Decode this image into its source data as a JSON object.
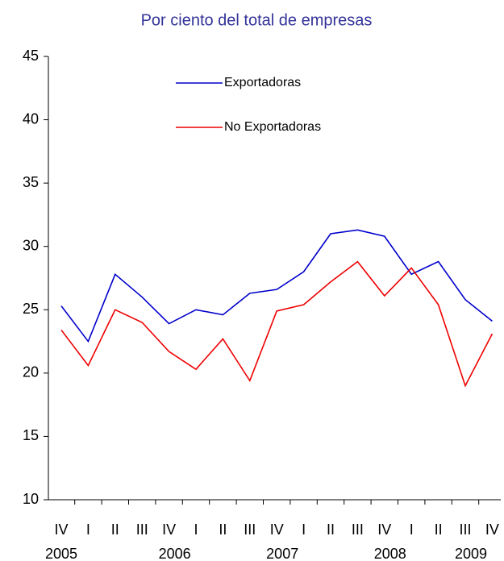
{
  "chart_data": {
    "type": "line",
    "title": "Por ciento del total de empresas",
    "categories": [
      "IV",
      "I",
      "II",
      "III",
      "IV",
      "I",
      "II",
      "III",
      "IV",
      "I",
      "II",
      "III",
      "IV",
      "I",
      "II",
      "III",
      "IV"
    ],
    "year_labels": [
      "2005",
      null,
      null,
      null,
      "2006",
      null,
      null,
      null,
      "2007",
      null,
      null,
      null,
      "2008",
      null,
      null,
      "2009",
      null
    ],
    "series": [
      {
        "name": "Exportadoras",
        "color": "#0000cc",
        "values": [
          25.3,
          22.5,
          27.8,
          26.0,
          23.9,
          25.0,
          24.6,
          26.3,
          26.6,
          28.0,
          31.0,
          31.3,
          30.8,
          27.8,
          28.8,
          25.8,
          24.1
        ]
      },
      {
        "name": "No Exportadoras",
        "color": "#ee0000",
        "values": [
          23.4,
          20.6,
          25.0,
          24.0,
          21.7,
          20.3,
          22.7,
          19.4,
          24.9,
          25.4,
          27.2,
          28.8,
          26.1,
          28.3,
          25.4,
          19.0,
          23.1
        ]
      }
    ],
    "ylim": [
      10,
      45
    ],
    "yticks": [
      10,
      15,
      20,
      25,
      30,
      35,
      40,
      45
    ],
    "grid": false,
    "legend": "top"
  }
}
